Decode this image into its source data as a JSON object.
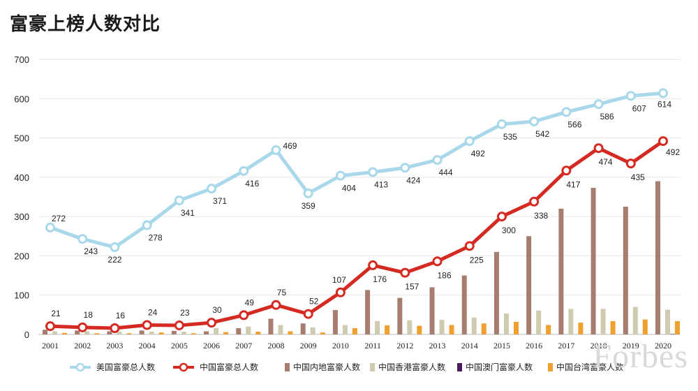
{
  "title": "富豪上榜人数对比",
  "watermark": "Forbes",
  "colors": {
    "us_total": "#a8d8ea",
    "cn_total": "#d42a22",
    "mainland": "#a67d6e",
    "hongkong": "#cfcbb0",
    "macau": "#4a1b5c",
    "taiwan": "#f0a030",
    "grid": "#e6e6e6"
  },
  "chart_data": {
    "type": "line",
    "title": "富豪上榜人数对比",
    "ylim": [
      0,
      700
    ],
    "yticks": [
      0,
      100,
      200,
      300,
      400,
      500,
      600,
      700
    ],
    "grid": true,
    "legend_position": "bottom",
    "categories": [
      "2001",
      "2002",
      "2003",
      "2004",
      "2005",
      "2006",
      "2007",
      "2008",
      "2009",
      "2010",
      "2011",
      "2012",
      "2013",
      "2014",
      "2015",
      "2016",
      "2017",
      "2018",
      "2019",
      "2020"
    ],
    "series": [
      {
        "name": "美国富豪总人数",
        "kind": "line",
        "values": [
          272,
          243,
          222,
          278,
          341,
          371,
          416,
          469,
          359,
          404,
          413,
          424,
          444,
          492,
          535,
          542,
          566,
          586,
          607,
          614
        ]
      },
      {
        "name": "中国富豪总人数",
        "kind": "line",
        "values": [
          21,
          18,
          16,
          24,
          23,
          30,
          49,
          75,
          52,
          107,
          176,
          157,
          186,
          225,
          300,
          338,
          417,
          474,
          435,
          492
        ]
      },
      {
        "name": "中国内地富豪人数",
        "kind": "bar",
        "values": [
          12,
          10,
          8,
          10,
          9,
          8,
          16,
          40,
          28,
          62,
          113,
          93,
          120,
          150,
          210,
          250,
          320,
          373,
          325,
          390
        ]
      },
      {
        "name": "中国香港富豪人数",
        "kind": "bar",
        "values": [
          8,
          8,
          7,
          7,
          7,
          16,
          20,
          24,
          18,
          24,
          34,
          36,
          37,
          43,
          53,
          61,
          65,
          65,
          70,
          63
        ]
      },
      {
        "name": "中国澳门富豪人数",
        "kind": "bar",
        "values": [
          0,
          0,
          0,
          0,
          0,
          0,
          0,
          0,
          0,
          0,
          0,
          0,
          0,
          0,
          0,
          0,
          0,
          0,
          0,
          1
        ]
      },
      {
        "name": "中国台湾富豪人数",
        "kind": "bar",
        "values": [
          4,
          3,
          3,
          5,
          3,
          6,
          7,
          8,
          5,
          16,
          23,
          22,
          24,
          28,
          32,
          24,
          30,
          34,
          38,
          34
        ]
      }
    ]
  }
}
